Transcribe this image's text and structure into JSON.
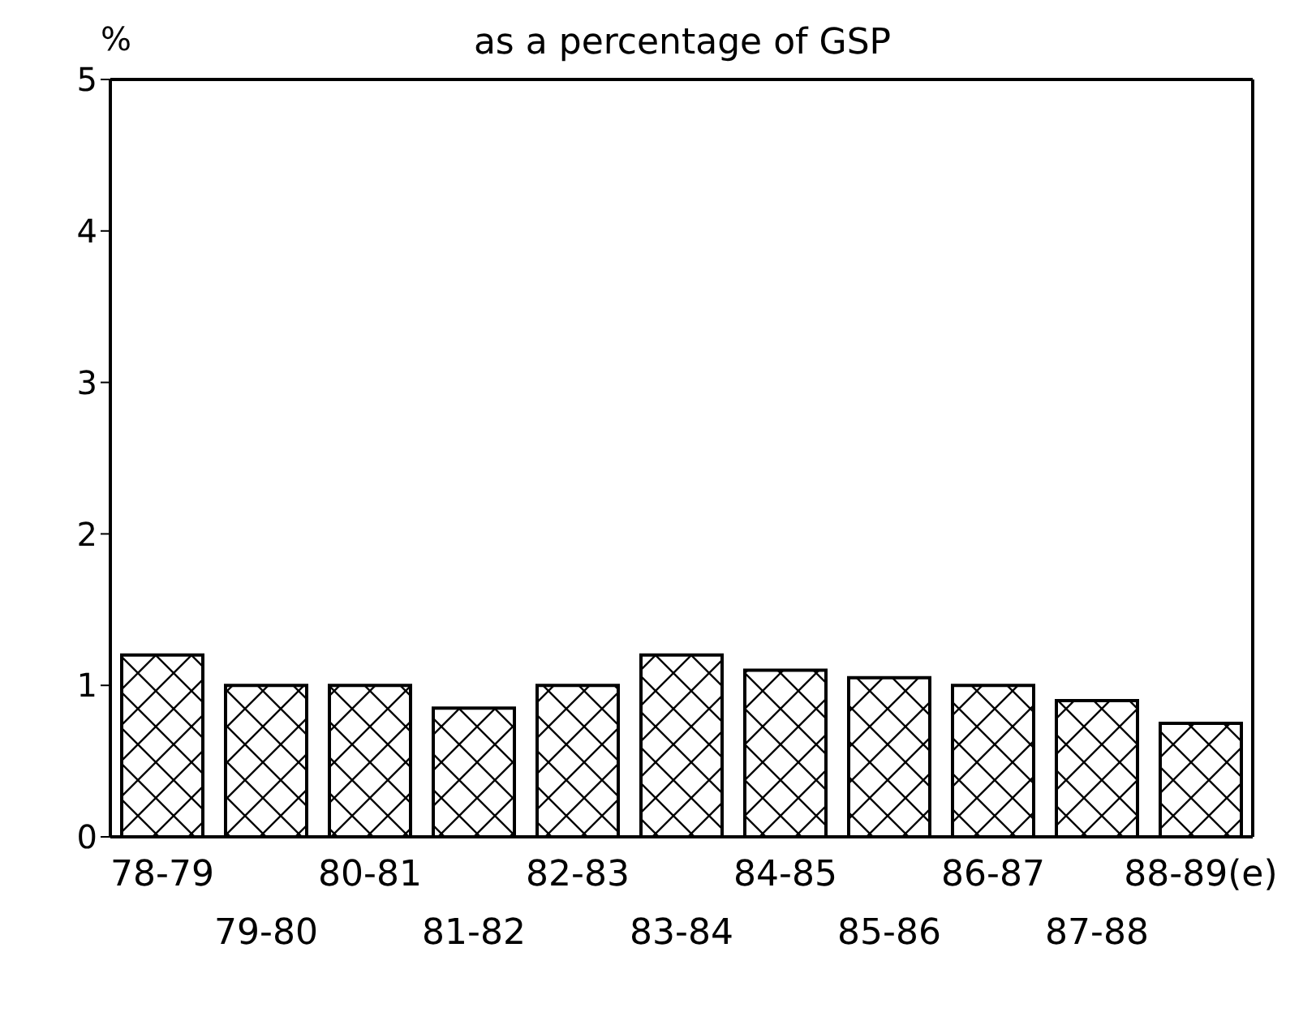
{
  "chart_data": {
    "type": "bar",
    "title": "as a percentage of GSP",
    "ylabel": "%",
    "categories": [
      "78-79",
      "79-80",
      "80-81",
      "81-82",
      "82-83",
      "83-84",
      "84-85",
      "85-86",
      "86-87",
      "87-88",
      "88-89(e)"
    ],
    "values": [
      1.2,
      1.0,
      1.0,
      0.85,
      1.0,
      1.2,
      1.1,
      1.05,
      1.0,
      0.9,
      0.75
    ],
    "color": "#000000",
    "ylim": [
      0,
      5
    ],
    "yticks": [
      0,
      1,
      2,
      3,
      4,
      5
    ],
    "grid": false
  }
}
